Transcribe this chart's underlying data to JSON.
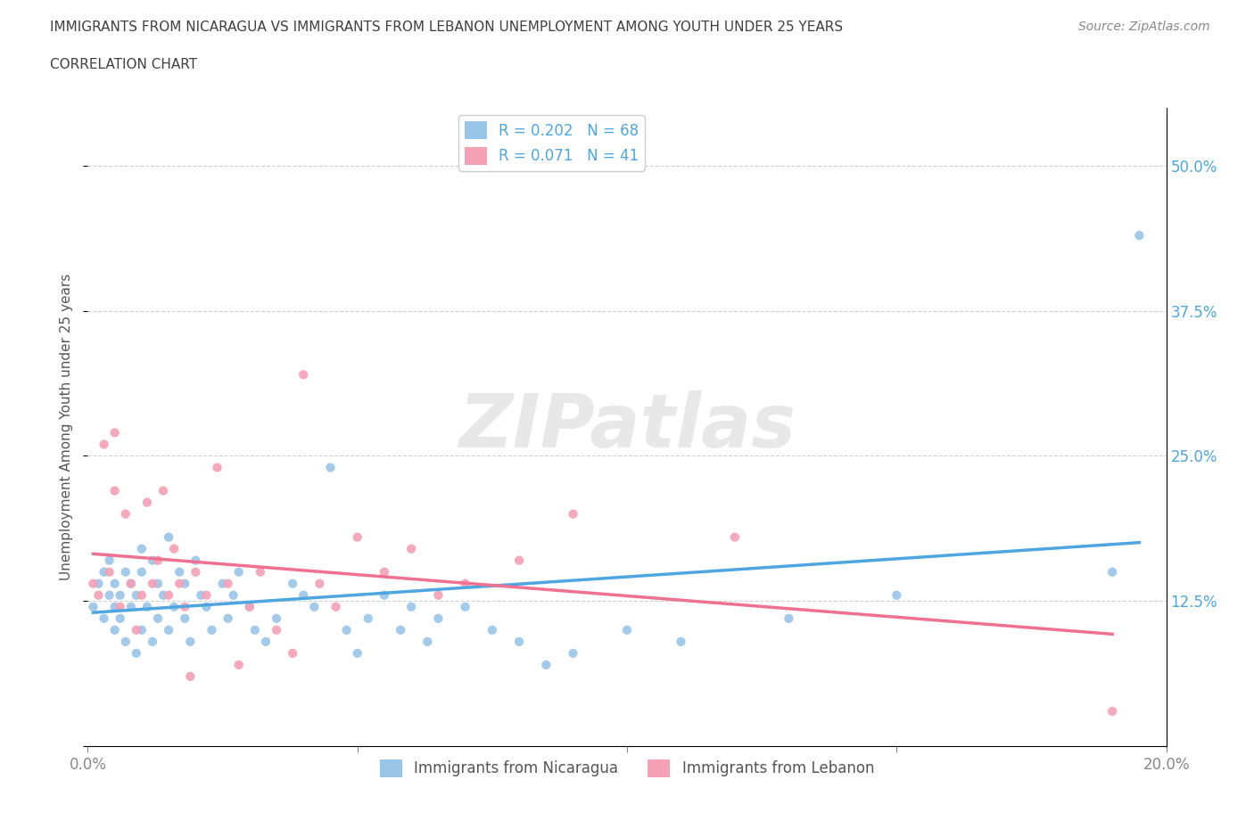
{
  "title_line1": "IMMIGRANTS FROM NICARAGUA VS IMMIGRANTS FROM LEBANON UNEMPLOYMENT AMONG YOUTH UNDER 25 YEARS",
  "title_line2": "CORRELATION CHART",
  "source": "Source: ZipAtlas.com",
  "ylabel": "Unemployment Among Youth under 25 years",
  "xlim": [
    0.0,
    0.2
  ],
  "ylim": [
    0.0,
    0.55
  ],
  "yticks": [
    0.0,
    0.125,
    0.25,
    0.375,
    0.5
  ],
  "ytick_labels": [
    "",
    "12.5%",
    "25.0%",
    "37.5%",
    "50.0%"
  ],
  "xticks": [
    0.0,
    0.05,
    0.1,
    0.15,
    0.2
  ],
  "xtick_labels": [
    "0.0%",
    "",
    "",
    "",
    "20.0%"
  ],
  "nicaragua_color": "#99c5e8",
  "lebanon_color": "#f5a0b5",
  "trend_nicaragua_color": "#4da6e0",
  "trend_lebanon_color": "#f07090",
  "R_nicaragua": 0.202,
  "N_nicaragua": 68,
  "R_lebanon": 0.071,
  "N_lebanon": 41,
  "legend_label_nicaragua": "Immigrants from Nicaragua",
  "legend_label_lebanon": "Immigrants from Lebanon",
  "watermark_zip": "ZIP",
  "watermark_atlas": "atlas",
  "background_color": "#ffffff",
  "grid_color": "#d0d0d0",
  "axis_label_color": "#4da6e0",
  "title_color": "#404040",
  "nicaragua_x": [
    0.001,
    0.002,
    0.003,
    0.003,
    0.004,
    0.004,
    0.005,
    0.005,
    0.005,
    0.006,
    0.006,
    0.007,
    0.007,
    0.008,
    0.008,
    0.009,
    0.009,
    0.01,
    0.01,
    0.01,
    0.011,
    0.012,
    0.012,
    0.013,
    0.013,
    0.014,
    0.015,
    0.015,
    0.016,
    0.017,
    0.018,
    0.018,
    0.019,
    0.02,
    0.021,
    0.022,
    0.023,
    0.025,
    0.026,
    0.027,
    0.028,
    0.03,
    0.031,
    0.033,
    0.035,
    0.038,
    0.04,
    0.042,
    0.045,
    0.048,
    0.05,
    0.052,
    0.055,
    0.058,
    0.06,
    0.063,
    0.065,
    0.07,
    0.075,
    0.08,
    0.085,
    0.09,
    0.1,
    0.11,
    0.13,
    0.15,
    0.19,
    0.195
  ],
  "nicaragua_y": [
    0.12,
    0.14,
    0.15,
    0.11,
    0.13,
    0.16,
    0.12,
    0.1,
    0.14,
    0.11,
    0.13,
    0.09,
    0.15,
    0.12,
    0.14,
    0.08,
    0.13,
    0.1,
    0.15,
    0.17,
    0.12,
    0.09,
    0.16,
    0.11,
    0.14,
    0.13,
    0.1,
    0.18,
    0.12,
    0.15,
    0.11,
    0.14,
    0.09,
    0.16,
    0.13,
    0.12,
    0.1,
    0.14,
    0.11,
    0.13,
    0.15,
    0.12,
    0.1,
    0.09,
    0.11,
    0.14,
    0.13,
    0.12,
    0.24,
    0.1,
    0.08,
    0.11,
    0.13,
    0.1,
    0.12,
    0.09,
    0.11,
    0.12,
    0.1,
    0.09,
    0.07,
    0.08,
    0.1,
    0.09,
    0.11,
    0.13,
    0.15,
    0.44
  ],
  "lebanon_x": [
    0.001,
    0.002,
    0.003,
    0.004,
    0.005,
    0.005,
    0.006,
    0.007,
    0.008,
    0.009,
    0.01,
    0.011,
    0.012,
    0.013,
    0.014,
    0.015,
    0.016,
    0.017,
    0.018,
    0.019,
    0.02,
    0.022,
    0.024,
    0.026,
    0.028,
    0.03,
    0.032,
    0.035,
    0.038,
    0.04,
    0.043,
    0.046,
    0.05,
    0.055,
    0.06,
    0.065,
    0.07,
    0.08,
    0.09,
    0.12,
    0.19
  ],
  "lebanon_y": [
    0.14,
    0.13,
    0.26,
    0.15,
    0.27,
    0.22,
    0.12,
    0.2,
    0.14,
    0.1,
    0.13,
    0.21,
    0.14,
    0.16,
    0.22,
    0.13,
    0.17,
    0.14,
    0.12,
    0.06,
    0.15,
    0.13,
    0.24,
    0.14,
    0.07,
    0.12,
    0.15,
    0.1,
    0.08,
    0.32,
    0.14,
    0.12,
    0.18,
    0.15,
    0.17,
    0.13,
    0.14,
    0.16,
    0.2,
    0.18,
    0.03
  ]
}
